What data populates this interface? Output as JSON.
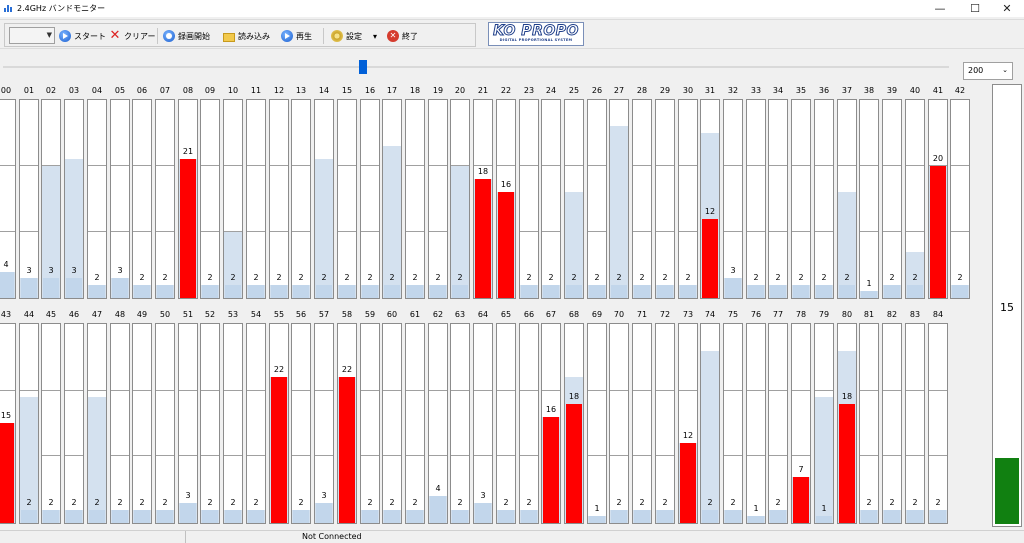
{
  "window": {
    "title": "2.4GHz バンドモニター",
    "minimize": "—",
    "maximize": "☐",
    "close": "✕"
  },
  "toolbar": {
    "combo_value": "",
    "start_label": "スタート",
    "clear_label": "クリアー",
    "record_label": "録画開始",
    "load_label": "読み込み",
    "play_label": "再生",
    "settings_label": "設定",
    "settings_arrow": "▾",
    "exit_label": "終了",
    "exit_glyph": "✕"
  },
  "logo": {
    "main": "KO PROPO",
    "sub": "DIGITAL PROPORTIONAL SYSTEM"
  },
  "zoom": {
    "value": "200",
    "arrow": "⌄"
  },
  "channels": {
    "scale_max": 30,
    "peak_color": "#d4e1ef",
    "bar_color": "#c2d6eb",
    "hot_color": "#ff0000",
    "row1": [
      {
        "ch": "00",
        "value": 4,
        "peak": 4
      },
      {
        "ch": "01",
        "value": 3,
        "peak": 3
      },
      {
        "ch": "02",
        "value": 3,
        "peak": 20
      },
      {
        "ch": "03",
        "value": 3,
        "peak": 21
      },
      {
        "ch": "04",
        "value": 2,
        "peak": 2
      },
      {
        "ch": "05",
        "value": 3,
        "peak": 3
      },
      {
        "ch": "06",
        "value": 2,
        "peak": 2
      },
      {
        "ch": "07",
        "value": 2,
        "peak": 2
      },
      {
        "ch": "08",
        "value": 21,
        "peak": 21
      },
      {
        "ch": "09",
        "value": 2,
        "peak": 2
      },
      {
        "ch": "10",
        "value": 2,
        "peak": 10
      },
      {
        "ch": "11",
        "value": 2,
        "peak": 2
      },
      {
        "ch": "12",
        "value": 2,
        "peak": 2
      },
      {
        "ch": "13",
        "value": 2,
        "peak": 2
      },
      {
        "ch": "14",
        "value": 2,
        "peak": 21
      },
      {
        "ch": "15",
        "value": 2,
        "peak": 2
      },
      {
        "ch": "16",
        "value": 2,
        "peak": 2
      },
      {
        "ch": "17",
        "value": 2,
        "peak": 23
      },
      {
        "ch": "18",
        "value": 2,
        "peak": 2
      },
      {
        "ch": "19",
        "value": 2,
        "peak": 2
      },
      {
        "ch": "20",
        "value": 2,
        "peak": 20
      },
      {
        "ch": "21",
        "value": 18,
        "peak": 18
      },
      {
        "ch": "22",
        "value": 16,
        "peak": 16
      },
      {
        "ch": "23",
        "value": 2,
        "peak": 2
      },
      {
        "ch": "24",
        "value": 2,
        "peak": 2
      },
      {
        "ch": "25",
        "value": 2,
        "peak": 16
      },
      {
        "ch": "26",
        "value": 2,
        "peak": 2
      },
      {
        "ch": "27",
        "value": 2,
        "peak": 26
      },
      {
        "ch": "28",
        "value": 2,
        "peak": 2
      },
      {
        "ch": "29",
        "value": 2,
        "peak": 2
      },
      {
        "ch": "30",
        "value": 2,
        "peak": 2
      },
      {
        "ch": "31",
        "value": 12,
        "peak": 25
      },
      {
        "ch": "32",
        "value": 3,
        "peak": 3
      },
      {
        "ch": "33",
        "value": 2,
        "peak": 2
      },
      {
        "ch": "34",
        "value": 2,
        "peak": 2
      },
      {
        "ch": "35",
        "value": 2,
        "peak": 2
      },
      {
        "ch": "36",
        "value": 2,
        "peak": 2
      },
      {
        "ch": "37",
        "value": 2,
        "peak": 16
      },
      {
        "ch": "38",
        "value": 1,
        "peak": 1
      },
      {
        "ch": "39",
        "value": 2,
        "peak": 2
      },
      {
        "ch": "40",
        "value": 2,
        "peak": 7
      },
      {
        "ch": "41",
        "value": 20,
        "peak": 20
      },
      {
        "ch": "42",
        "value": 2,
        "peak": 2
      }
    ],
    "row2": [
      {
        "ch": "43",
        "value": 15,
        "peak": 15
      },
      {
        "ch": "44",
        "value": 2,
        "peak": 19
      },
      {
        "ch": "45",
        "value": 2,
        "peak": 2
      },
      {
        "ch": "46",
        "value": 2,
        "peak": 2
      },
      {
        "ch": "47",
        "value": 2,
        "peak": 19
      },
      {
        "ch": "48",
        "value": 2,
        "peak": 2
      },
      {
        "ch": "49",
        "value": 2,
        "peak": 2
      },
      {
        "ch": "50",
        "value": 2,
        "peak": 2
      },
      {
        "ch": "51",
        "value": 3,
        "peak": 3
      },
      {
        "ch": "52",
        "value": 2,
        "peak": 2
      },
      {
        "ch": "53",
        "value": 2,
        "peak": 2
      },
      {
        "ch": "54",
        "value": 2,
        "peak": 2
      },
      {
        "ch": "55",
        "value": 22,
        "peak": 22
      },
      {
        "ch": "56",
        "value": 2,
        "peak": 2
      },
      {
        "ch": "57",
        "value": 3,
        "peak": 3
      },
      {
        "ch": "58",
        "value": 22,
        "peak": 22
      },
      {
        "ch": "59",
        "value": 2,
        "peak": 2
      },
      {
        "ch": "60",
        "value": 2,
        "peak": 2
      },
      {
        "ch": "61",
        "value": 2,
        "peak": 2
      },
      {
        "ch": "62",
        "value": 4,
        "peak": 4
      },
      {
        "ch": "63",
        "value": 2,
        "peak": 2
      },
      {
        "ch": "64",
        "value": 3,
        "peak": 3
      },
      {
        "ch": "65",
        "value": 2,
        "peak": 2
      },
      {
        "ch": "66",
        "value": 2,
        "peak": 2
      },
      {
        "ch": "67",
        "value": 16,
        "peak": 16
      },
      {
        "ch": "68",
        "value": 18,
        "peak": 22
      },
      {
        "ch": "69",
        "value": 1,
        "peak": 1
      },
      {
        "ch": "70",
        "value": 2,
        "peak": 2
      },
      {
        "ch": "71",
        "value": 2,
        "peak": 2
      },
      {
        "ch": "72",
        "value": 2,
        "peak": 2
      },
      {
        "ch": "73",
        "value": 12,
        "peak": 12
      },
      {
        "ch": "74",
        "value": 2,
        "peak": 26
      },
      {
        "ch": "75",
        "value": 2,
        "peak": 2
      },
      {
        "ch": "76",
        "value": 1,
        "peak": 1
      },
      {
        "ch": "77",
        "value": 2,
        "peak": 2
      },
      {
        "ch": "78",
        "value": 7,
        "peak": 7
      },
      {
        "ch": "79",
        "value": 1,
        "peak": 19
      },
      {
        "ch": "80",
        "value": 18,
        "peak": 26
      },
      {
        "ch": "81",
        "value": 2,
        "peak": 2
      },
      {
        "ch": "82",
        "value": 2,
        "peak": 2
      },
      {
        "ch": "83",
        "value": 2,
        "peak": 2
      },
      {
        "ch": "84",
        "value": 2,
        "peak": 2
      }
    ]
  },
  "gauge": {
    "value": "15",
    "level": 0.15,
    "color": "#118011"
  },
  "status": {
    "left": "",
    "connection": "Not Connected"
  }
}
